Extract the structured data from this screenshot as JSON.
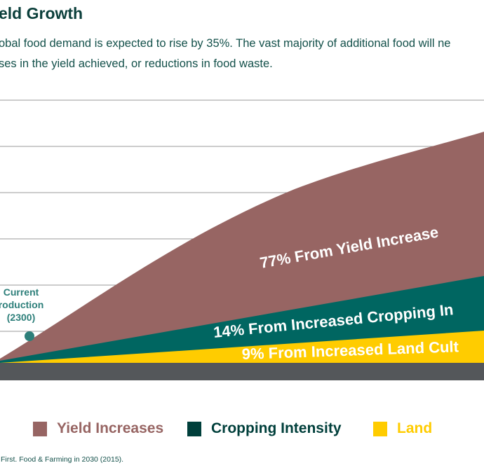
{
  "title": "eld Growth",
  "description": [
    "obal food demand is expected to rise by 35%. The vast majority of additional food will ne",
    "ses in the yield achieved, or reductions in food waste."
  ],
  "chart_data": {
    "type": "area",
    "stacked": true,
    "grid": true,
    "series": [
      {
        "name": "Land",
        "share_percent": 9,
        "label": "9% From Increased Land Cult",
        "color": "#ffcc00"
      },
      {
        "name": "Cropping Intensity",
        "share_percent": 14,
        "label": "14% From Increased Cropping In",
        "color": "#006661"
      },
      {
        "name": "Yield Increases",
        "share_percent": 77,
        "label": "77% From Yield Increase",
        "color": "#976563"
      }
    ],
    "annotation": {
      "lines": [
        "Current",
        "roduction",
        "(2300)"
      ],
      "value": 2300,
      "color": "#2d7f7a"
    },
    "baseline_color": "#54575a"
  },
  "legend": {
    "position": "bottom",
    "items": [
      {
        "label": "Yield Increases",
        "color": "#976563"
      },
      {
        "label": "Cropping Intensity",
        "color": "#003f3b"
      },
      {
        "label": "Land",
        "color": "#ffcc00"
      }
    ]
  },
  "source": "First. Food & Farming in 2030 (2015)."
}
